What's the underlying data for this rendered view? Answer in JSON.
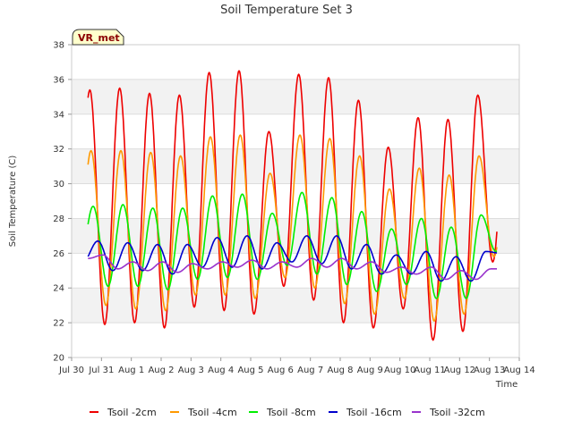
{
  "chart_data": {
    "type": "line",
    "title": "Soil Temperature Set 3",
    "xlabel": "Time",
    "ylabel": "Soil Temperature (C)",
    "badge": "VR_met",
    "ylim": [
      20,
      38
    ],
    "yticks": [
      20,
      22,
      24,
      26,
      28,
      30,
      32,
      34,
      36,
      38
    ],
    "xlim": [
      0,
      15
    ],
    "x_unit": "days from Jul 30",
    "xtick_labels": [
      "Jul 30",
      "Jul 31",
      "Aug 1",
      "Aug 2",
      "Aug 3",
      "Aug 4",
      "Aug 5",
      "Aug 6",
      "Aug 7",
      "Aug 8",
      "Aug 9",
      "Aug 10",
      "Aug 11",
      "Aug 12",
      "Aug 13",
      "Aug 14"
    ],
    "grid": "horizontal bands",
    "legend_position": "bottom",
    "series": [
      {
        "name": "Tsoil -2cm",
        "color": "#ee0000",
        "phase": 0.61,
        "max": [
          35.4,
          35.5,
          35.2,
          35.1,
          36.4,
          36.5,
          33.0,
          36.3,
          36.1,
          34.8,
          32.1,
          33.8,
          33.7,
          35.1
        ],
        "min": [
          22.4,
          21.9,
          22.0,
          21.7,
          22.9,
          22.7,
          22.5,
          24.1,
          23.3,
          22.0,
          21.7,
          22.8,
          21.0,
          21.5,
          25.5
        ]
      },
      {
        "name": "Tsoil -4cm",
        "color": "#ff9900",
        "phase": 0.65,
        "max": [
          31.9,
          31.9,
          31.8,
          31.6,
          32.7,
          32.8,
          30.6,
          32.8,
          32.6,
          31.6,
          29.7,
          30.9,
          30.5,
          31.6
        ],
        "min": [
          23.5,
          23.0,
          22.8,
          22.7,
          23.6,
          23.6,
          23.4,
          24.6,
          24.0,
          23.1,
          22.5,
          23.4,
          22.1,
          22.5,
          25.8
        ]
      },
      {
        "name": "Tsoil -8cm",
        "color": "#00ee00",
        "phase": 0.72,
        "max": [
          28.7,
          28.8,
          28.6,
          28.6,
          29.3,
          29.4,
          28.3,
          29.5,
          29.2,
          28.4,
          27.4,
          28.0,
          27.5,
          28.2
        ],
        "min": [
          24.7,
          24.1,
          24.1,
          23.9,
          24.5,
          24.6,
          24.5,
          25.3,
          24.8,
          24.2,
          23.8,
          24.2,
          23.4,
          23.4,
          26.1
        ]
      },
      {
        "name": "Tsoil -16cm",
        "color": "#0000cc",
        "phase": 0.88,
        "max": [
          26.7,
          26.6,
          26.5,
          26.5,
          26.9,
          27.0,
          26.6,
          27.0,
          27.0,
          26.5,
          25.9,
          26.1,
          25.8,
          26.1
        ],
        "min": [
          25.5,
          25.0,
          25.0,
          24.8,
          25.2,
          25.2,
          25.1,
          25.5,
          25.4,
          25.1,
          24.8,
          24.8,
          24.4,
          24.4,
          26.0
        ]
      },
      {
        "name": "Tsoil -32cm",
        "color": "#9933cc",
        "phase": 1.05,
        "max": [
          25.9,
          25.5,
          25.5,
          25.4,
          25.5,
          25.6,
          25.5,
          25.7,
          25.7,
          25.5,
          25.2,
          25.2,
          25.0,
          25.1
        ],
        "min": [
          25.7,
          25.1,
          25.0,
          24.9,
          25.1,
          25.2,
          25.1,
          25.2,
          25.2,
          25.1,
          24.9,
          24.8,
          24.5,
          24.5,
          25.1
        ]
      }
    ]
  }
}
